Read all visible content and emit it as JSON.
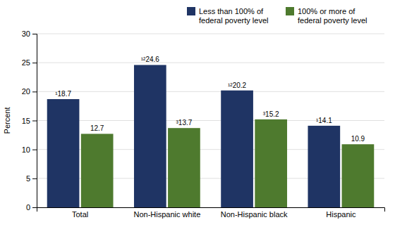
{
  "chart_data": {
    "type": "bar",
    "categories": [
      "Total",
      "Non-Hispanic white",
      "Non-Hispanic black",
      "Hispanic"
    ],
    "series": [
      {
        "name": "Less than 100% of\nfederal poverty level",
        "color": "#1f3464",
        "values": [
          18.7,
          24.6,
          20.2,
          14.1
        ],
        "value_labels": [
          "¹18.7",
          "¹²24.6",
          "¹²20.2",
          "¹14.1"
        ]
      },
      {
        "name": "100% or more of\nfederal poverty level",
        "color": "#4e7a2e",
        "values": [
          12.7,
          13.7,
          15.2,
          10.9
        ],
        "value_labels": [
          "12.7",
          "³13.7",
          "³15.2",
          "10.9"
        ]
      }
    ],
    "ylabel": "Percent",
    "ylim": [
      0,
      30
    ],
    "yticks": [
      0,
      5,
      10,
      15,
      20,
      25,
      30
    ],
    "grid": true,
    "legend": "top-right",
    "data_labels": true
  }
}
